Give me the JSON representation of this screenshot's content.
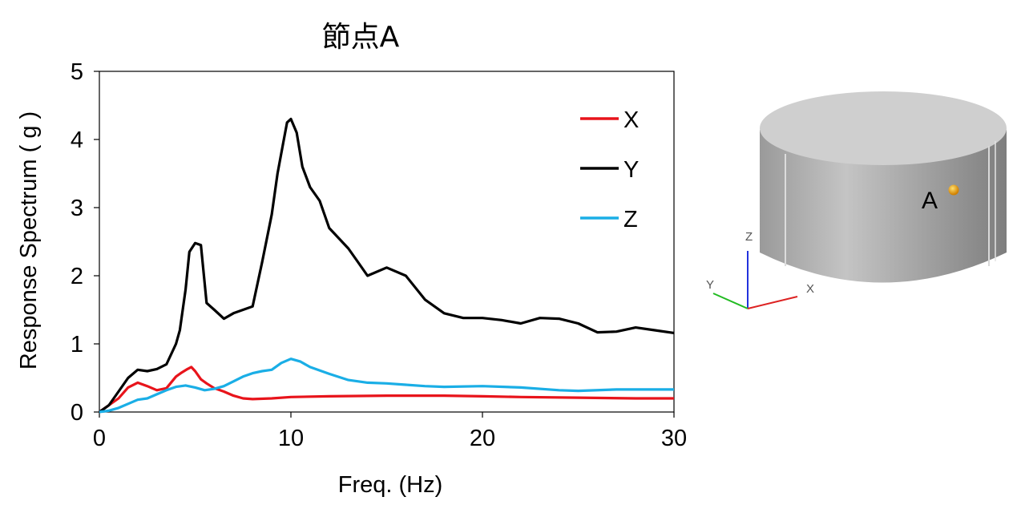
{
  "colors": {
    "X": "#e8141b",
    "Y": "#000000",
    "Z": "#1aaee6",
    "model_body": "#b8b8b8",
    "node": "#f0a000"
  },
  "model": {
    "node_label": "A",
    "axes": [
      "Z",
      "Y",
      "X"
    ]
  },
  "chart_data": {
    "type": "line",
    "title": "節点A",
    "xlabel": "Freq. (Hz)",
    "ylabel": "Response Spectrum ( g )",
    "xlim": [
      0,
      30
    ],
    "ylim": [
      0,
      5
    ],
    "xticks": [
      0,
      10,
      20,
      30
    ],
    "yticks": [
      0,
      1,
      2,
      3,
      4,
      5
    ],
    "grid": false,
    "legend": "top-right",
    "series": [
      {
        "name": "X",
        "color": "#e8141b",
        "x": [
          0,
          0.5,
          1,
          1.5,
          2,
          2.5,
          3,
          3.5,
          4,
          4.3,
          4.6,
          4.8,
          5,
          5.3,
          5.6,
          6,
          6.5,
          7,
          7.5,
          8,
          9,
          10,
          12,
          15,
          18,
          20,
          22,
          25,
          28,
          30
        ],
        "y": [
          0,
          0.1,
          0.2,
          0.36,
          0.43,
          0.38,
          0.32,
          0.35,
          0.52,
          0.58,
          0.63,
          0.66,
          0.6,
          0.48,
          0.42,
          0.35,
          0.3,
          0.24,
          0.2,
          0.19,
          0.2,
          0.22,
          0.23,
          0.24,
          0.24,
          0.23,
          0.22,
          0.21,
          0.2,
          0.2
        ]
      },
      {
        "name": "Y",
        "color": "#000000",
        "x": [
          0,
          0.5,
          1,
          1.5,
          2,
          2.5,
          3,
          3.5,
          4,
          4.2,
          4.5,
          4.7,
          5,
          5.3,
          5.6,
          6,
          6.5,
          7,
          8,
          8.5,
          9,
          9.3,
          9.6,
          9.8,
          10,
          10.3,
          10.6,
          11,
          11.5,
          12,
          13,
          13.5,
          14,
          15,
          16,
          17,
          18,
          19,
          20,
          21,
          22,
          23,
          24,
          25,
          26,
          27,
          28,
          29,
          30
        ],
        "y": [
          0,
          0.1,
          0.3,
          0.5,
          0.62,
          0.6,
          0.63,
          0.7,
          1.0,
          1.2,
          1.8,
          2.35,
          2.48,
          2.45,
          1.6,
          1.5,
          1.37,
          1.45,
          1.55,
          2.2,
          2.9,
          3.5,
          3.95,
          4.25,
          4.3,
          4.1,
          3.6,
          3.3,
          3.1,
          2.7,
          2.4,
          2.2,
          2.0,
          2.12,
          2.0,
          1.65,
          1.45,
          1.38,
          1.38,
          1.35,
          1.3,
          1.38,
          1.37,
          1.3,
          1.17,
          1.18,
          1.24,
          1.2,
          1.16
        ]
      },
      {
        "name": "Z",
        "color": "#1aaee6",
        "x": [
          0,
          0.5,
          1,
          1.5,
          2,
          2.5,
          3,
          3.5,
          4,
          4.5,
          5,
          5.5,
          6,
          6.5,
          7,
          7.5,
          8,
          8.5,
          9,
          9.5,
          10,
          10.5,
          11,
          12,
          13,
          14,
          15,
          16,
          17,
          18,
          20,
          22,
          24,
          25,
          27,
          30
        ],
        "y": [
          0,
          0.02,
          0.06,
          0.12,
          0.18,
          0.2,
          0.26,
          0.32,
          0.37,
          0.39,
          0.36,
          0.32,
          0.34,
          0.38,
          0.45,
          0.52,
          0.57,
          0.6,
          0.62,
          0.72,
          0.78,
          0.74,
          0.66,
          0.56,
          0.47,
          0.43,
          0.42,
          0.4,
          0.38,
          0.37,
          0.38,
          0.36,
          0.32,
          0.31,
          0.33,
          0.33
        ]
      }
    ]
  }
}
